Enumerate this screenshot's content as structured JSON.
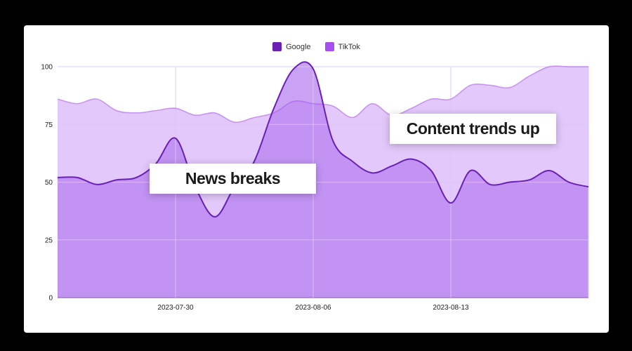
{
  "legend": {
    "google_label": "Google",
    "tiktok_label": "TikTok"
  },
  "annotations": {
    "news": "News breaks",
    "content": "Content trends up"
  },
  "colors": {
    "google": "#6a1fb5",
    "tiktok": "#a64ef0",
    "google_area": "#b57ef0",
    "tiktok_area": "#e2c8fb",
    "grid": "#d9c7ef"
  },
  "chart_data": {
    "type": "area",
    "title": "",
    "xlabel": "",
    "ylabel": "",
    "ylim": [
      0,
      100
    ],
    "y_ticks": [
      0,
      25,
      50,
      75,
      100
    ],
    "x_ticks": [
      "2023-07-30",
      "2023-08-06",
      "2023-08-13"
    ],
    "x": [
      "2023-07-24",
      "2023-07-25",
      "2023-07-26",
      "2023-07-27",
      "2023-07-28",
      "2023-07-29",
      "2023-07-30",
      "2023-07-31",
      "2023-08-01",
      "2023-08-02",
      "2023-08-03",
      "2023-08-04",
      "2023-08-05",
      "2023-08-06",
      "2023-08-07",
      "2023-08-08",
      "2023-08-09",
      "2023-08-10",
      "2023-08-11",
      "2023-08-12",
      "2023-08-13",
      "2023-08-14",
      "2023-08-15",
      "2023-08-16",
      "2023-08-17",
      "2023-08-18",
      "2023-08-19",
      "2023-08-20"
    ],
    "series": [
      {
        "name": "Google",
        "values": [
          52,
          52,
          49,
          51,
          52,
          58,
          69,
          48,
          35,
          48,
          59,
          82,
          99,
          99,
          68,
          59,
          54,
          57,
          60,
          55,
          41,
          55,
          49,
          50,
          51,
          55,
          50,
          48
        ]
      },
      {
        "name": "TikTok",
        "values": [
          86,
          84,
          86,
          81,
          80,
          81,
          82,
          79,
          80,
          76,
          78,
          80,
          85,
          84,
          83,
          78,
          84,
          79,
          82,
          86,
          86,
          92,
          92,
          91,
          96,
          100,
          100,
          100
        ]
      }
    ],
    "legend_position": "top",
    "grid": true
  }
}
